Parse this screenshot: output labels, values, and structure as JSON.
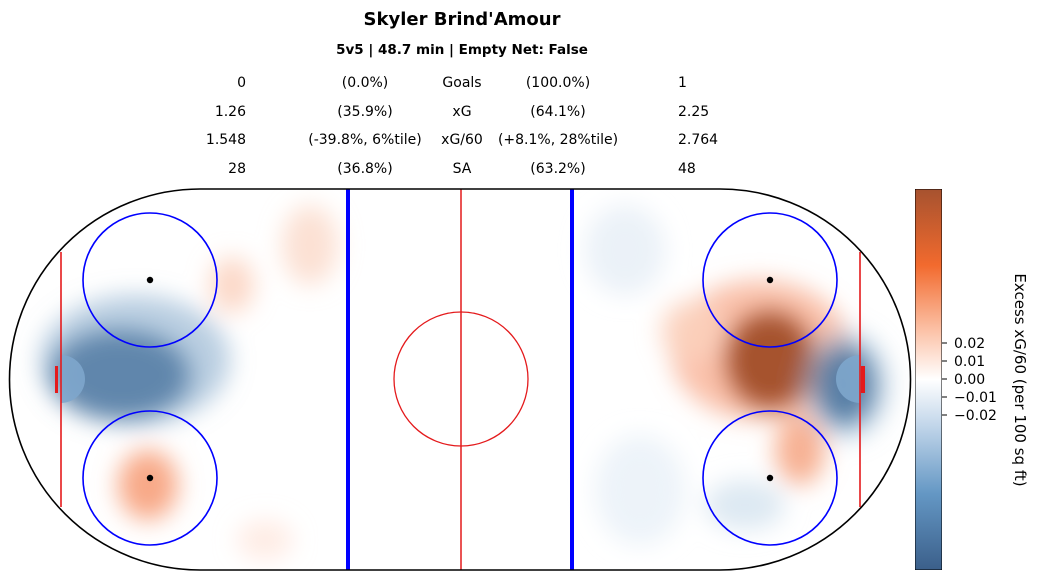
{
  "header": {
    "title": "Skyler Brind'Amour",
    "subtitle": "5v5 | 48.7 min | Empty Net: False"
  },
  "stats": [
    {
      "label": "Goals",
      "left_value": "0",
      "left_pct": "(0.0%)",
      "right_pct": "(100.0%)",
      "right_value": "1"
    },
    {
      "label": "xG",
      "left_value": "1.26",
      "left_pct": "(35.9%)",
      "right_pct": "(64.1%)",
      "right_value": "2.25"
    },
    {
      "label": "xG/60",
      "left_value": "1.548",
      "left_pct": "(-39.8%, 6%tile)",
      "right_pct": "(+8.1%, 28%tile)",
      "right_value": "2.764"
    },
    {
      "label": "SA",
      "left_value": "28",
      "left_pct": "(36.8%)",
      "right_pct": "(63.2%)",
      "right_value": "48"
    }
  ],
  "colorbar": {
    "label": "Excess xG/60 (per 100 sq ft)",
    "ticks": [
      "0.02",
      "0.01",
      "0.00",
      "−0.01",
      "−0.02"
    ],
    "colors": {
      "low": "#3b5f8a",
      "mid": "#ffffff",
      "high": "#a6522f",
      "accent": "#f26a2e"
    }
  },
  "chart_data": {
    "type": "heatmap",
    "title": "Skyler Brind'Amour",
    "subtitle": "5v5 | 48.7 min | Empty Net: False",
    "colorbar_label": "Excess xG/60 (per 100 sq ft)",
    "colorbar_ticks": [
      0.02,
      0.01,
      0.0,
      -0.01,
      -0.02
    ],
    "zones": [
      {
        "zone": "left slot / net front",
        "sign": "negative",
        "intensity": "strong"
      },
      {
        "zone": "left lower faceoff circle",
        "sign": "positive",
        "intensity": "moderate"
      },
      {
        "zone": "left upper circle edge",
        "sign": "positive",
        "intensity": "light"
      },
      {
        "zone": "left top boards near blue line",
        "sign": "positive",
        "intensity": "light"
      },
      {
        "zone": "right slot",
        "sign": "positive",
        "intensity": "strong"
      },
      {
        "zone": "right net front",
        "sign": "negative",
        "intensity": "strong"
      },
      {
        "zone": "right lower circle top",
        "sign": "positive",
        "intensity": "moderate"
      },
      {
        "zone": "right lower circle",
        "sign": "negative",
        "intensity": "light"
      }
    ]
  }
}
